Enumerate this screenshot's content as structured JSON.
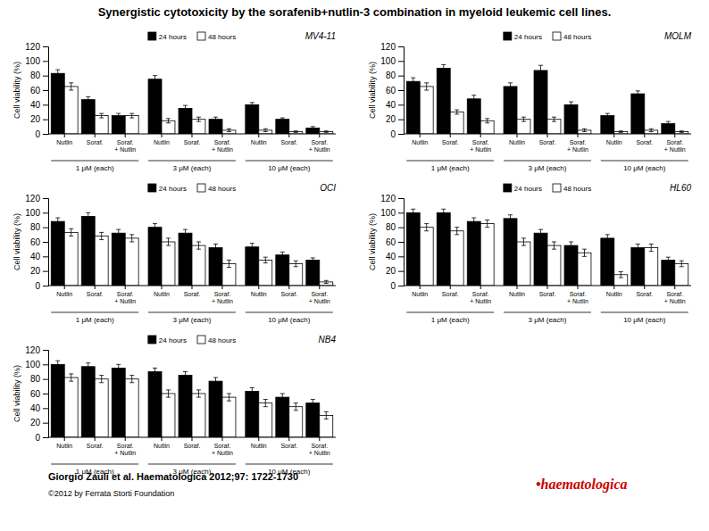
{
  "title": "Synergistic cytotoxicity by the sorafenib+nutlin-3 combination in myeloid leukemic cell lines.",
  "annotations": [
    {
      "text": "Giorgio Zauli et al. Haematologica 2012;97: 1722-1730"
    },
    {
      "text": "©2012 by Ferrata Storti Foundation"
    },
    {
      "text": "•haematologica",
      "color": "#cc0000"
    }
  ],
  "chart_data": [
    {
      "type": "bar",
      "title": "MV4-11",
      "y_label": "Cell viability (%)",
      "categories": [
        "Nutlin",
        "Soraf.",
        "Soraf.\n+ Nutlin",
        "Nutlin",
        "Soraf.",
        "Soraf.\n+ Nutlin",
        "Nutlin",
        "Soraf.",
        "Soraf.\n+ Nutlin"
      ],
      "annotations": [
        "1 μM (each)",
        "3 μM (each)",
        "10 μM (each)"
      ],
      "series": [
        {
          "name": "24 hours",
          "color": "#000000",
          "values": [
            83,
            47,
            25,
            75,
            35,
            20,
            40,
            20,
            8
          ],
          "errors": [
            5,
            4,
            3,
            5,
            4,
            3,
            3,
            2,
            2
          ]
        },
        {
          "name": "48 hours",
          "color": "#ffffff",
          "values": [
            65,
            25,
            25,
            18,
            20,
            5,
            5,
            3,
            3
          ],
          "errors": [
            5,
            3,
            3,
            3,
            3,
            2,
            2,
            1,
            1
          ]
        }
      ],
      "ylim": [
        0,
        120
      ],
      "yticks": [
        0,
        20,
        40,
        60,
        80,
        100,
        120
      ],
      "grid": false,
      "legend": "top"
    },
    {
      "type": "bar",
      "title": "MOLM",
      "y_label": "Cell viability (%)",
      "categories": [
        "Nutlin",
        "Soraf.",
        "Soraf.\n+ Nutlin",
        "Nutlin",
        "Soraf.",
        "Soraf.\n+ Nutlin",
        "Nutlin",
        "Soraf.",
        "Soraf.\n+ Nutlin"
      ],
      "annotations": [
        "1 μM (each)",
        "3 μM (each)",
        "10 μM (each)"
      ],
      "series": [
        {
          "name": "24 hours",
          "color": "#000000",
          "values": [
            72,
            90,
            48,
            65,
            87,
            40,
            25,
            55,
            14
          ],
          "errors": [
            5,
            5,
            5,
            5,
            7,
            4,
            3,
            4,
            3
          ]
        },
        {
          "name": "48 hours",
          "color": "#ffffff",
          "values": [
            65,
            30,
            18,
            20,
            20,
            5,
            3,
            5,
            3
          ],
          "errors": [
            5,
            3,
            3,
            3,
            3,
            2,
            1,
            2,
            1
          ]
        }
      ],
      "ylim": [
        0,
        120
      ],
      "yticks": [
        0,
        20,
        40,
        60,
        80,
        100,
        120
      ],
      "grid": false,
      "legend": "top"
    },
    {
      "type": "bar",
      "title": "OCI",
      "y_label": "Cell viability (%)",
      "categories": [
        "Nutlin",
        "Soraf.",
        "Soraf.\n+ Nutlin",
        "Nutlin",
        "Soraf.",
        "Soraf.\n+ Nutlin",
        "Nutlin",
        "Soraf.",
        "Soraf.\n+ Nutlin"
      ],
      "annotations": [
        "1 μM (each)",
        "3 μM (each)",
        "10 μM (each)"
      ],
      "series": [
        {
          "name": "24 hours",
          "color": "#000000",
          "values": [
            88,
            95,
            72,
            80,
            72,
            52,
            53,
            42,
            35
          ],
          "errors": [
            5,
            5,
            5,
            5,
            5,
            5,
            5,
            4,
            3
          ]
        },
        {
          "name": "48 hours",
          "color": "#ffffff",
          "values": [
            73,
            68,
            65,
            60,
            55,
            30,
            35,
            30,
            5
          ],
          "errors": [
            5,
            5,
            5,
            5,
            5,
            5,
            4,
            4,
            2
          ]
        }
      ],
      "ylim": [
        0,
        120
      ],
      "yticks": [
        0,
        20,
        40,
        60,
        80,
        100,
        120
      ],
      "grid": false,
      "legend": "top"
    },
    {
      "type": "bar",
      "title": "HL60",
      "y_label": "Cell viability (%)",
      "categories": [
        "Nutlin",
        "Soraf.",
        "Soraf.\n+ Nutlin",
        "Nutlin",
        "Soraf.",
        "Soraf.\n+ Nutlin",
        "Nutlin",
        "Soraf.",
        "Soraf.\n+ Nutlin"
      ],
      "annotations": [
        "1 μM (each)",
        "3 μM (each)",
        "10 μM (each)"
      ],
      "series": [
        {
          "name": "24 hours",
          "color": "#000000",
          "values": [
            100,
            100,
            88,
            92,
            72,
            55,
            65,
            52,
            35
          ],
          "errors": [
            5,
            5,
            5,
            5,
            5,
            5,
            5,
            5,
            4
          ]
        },
        {
          "name": "48 hours",
          "color": "#ffffff",
          "values": [
            80,
            75,
            85,
            60,
            55,
            45,
            15,
            52,
            30
          ],
          "errors": [
            5,
            5,
            5,
            5,
            5,
            5,
            4,
            5,
            4
          ]
        }
      ],
      "ylim": [
        0,
        120
      ],
      "yticks": [
        0,
        20,
        40,
        60,
        80,
        100,
        120
      ],
      "grid": false,
      "legend": "top"
    },
    {
      "type": "bar",
      "title": "NB4",
      "y_label": "Cell viability (%)",
      "categories": [
        "Nutlin",
        "Soraf.",
        "Soraf.\n+ Nutlin",
        "Nutlin",
        "Soraf.",
        "Soraf.\n+ Nutlin",
        "Nutlin",
        "Soraf.",
        "Soraf.\n+ Nutlin"
      ],
      "annotations": [
        "1 μM (each)",
        "3 μM (each)",
        "10 μM (each)"
      ],
      "series": [
        {
          "name": "24 hours",
          "color": "#000000",
          "values": [
            100,
            97,
            95,
            90,
            85,
            77,
            63,
            55,
            47
          ],
          "errors": [
            5,
            5,
            5,
            5,
            5,
            5,
            5,
            5,
            5
          ]
        },
        {
          "name": "48 hours",
          "color": "#ffffff",
          "values": [
            82,
            80,
            80,
            60,
            60,
            55,
            47,
            42,
            30
          ],
          "errors": [
            5,
            5,
            5,
            5,
            5,
            5,
            5,
            5,
            5
          ]
        }
      ],
      "ylim": [
        0,
        120
      ],
      "yticks": [
        0,
        20,
        40,
        60,
        80,
        100,
        120
      ],
      "grid": false,
      "legend": "top"
    }
  ]
}
